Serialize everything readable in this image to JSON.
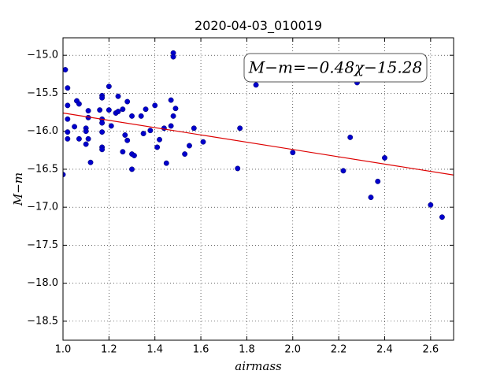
{
  "chart_data": {
    "type": "scatter",
    "title": "2020-04-03_010019",
    "x_label": "airmass",
    "y_label": "M−m",
    "annotation": "M−m=−0.48χ−15.28",
    "fit": {
      "slope": -0.48,
      "intercept": -15.28,
      "color": "#dd0000"
    },
    "color": "#0000cc",
    "grid": true,
    "xlim": [
      1.0,
      2.7
    ],
    "ylim": [
      -18.75,
      -14.77
    ],
    "xticks": [
      {
        "value": 1,
        "label": "1.0"
      },
      1.2,
      1.4,
      1.6,
      1.8,
      {
        "value": 2,
        "label": "2.0"
      },
      2.2,
      2.4,
      2.6
    ],
    "yticks": [
      {
        "value": -15,
        "label": "−15.0"
      },
      {
        "value": -15.5,
        "label": "−15.5"
      },
      {
        "value": -16,
        "label": "−16.0"
      },
      {
        "value": -16.5,
        "label": "−16.5"
      },
      {
        "value": -17,
        "label": "−17.0"
      },
      {
        "value": -17.5,
        "label": "−17.5"
      },
      {
        "value": -18,
        "label": "−18.0"
      },
      {
        "value": -18.5,
        "label": "−18.5"
      }
    ],
    "x": [
      1.0,
      1.01,
      1.02,
      1.02,
      1.02,
      1.02,
      1.02,
      1.05,
      1.06,
      1.07,
      1.07,
      1.1,
      1.1,
      1.1,
      1.11,
      1.11,
      1.11,
      1.12,
      1.16,
      1.17,
      1.17,
      1.17,
      1.17,
      1.17,
      1.17,
      1.17,
      1.2,
      1.2,
      1.21,
      1.23,
      1.24,
      1.24,
      1.26,
      1.26,
      1.27,
      1.28,
      1.28,
      1.3,
      1.3,
      1.3,
      1.31,
      1.34,
      1.35,
      1.36,
      1.38,
      1.4,
      1.41,
      1.42,
      1.44,
      1.45,
      1.47,
      1.47,
      1.48,
      1.48,
      1.48,
      1.49,
      1.53,
      1.55,
      1.57,
      1.61,
      1.76,
      1.77,
      1.84,
      2.0,
      2.22,
      2.25,
      2.28,
      2.34,
      2.37,
      2.4,
      2.6,
      2.65
    ],
    "values": [
      -16.57,
      -15.19,
      -15.43,
      -15.66,
      -15.84,
      -16.01,
      -16.1,
      -15.94,
      -15.6,
      -15.64,
      -16.1,
      -15.96,
      -16.0,
      -16.17,
      -16.1,
      -15.73,
      -15.82,
      -16.41,
      -15.72,
      -15.53,
      -15.56,
      -15.84,
      -15.89,
      -16.01,
      -16.21,
      -16.24,
      -15.41,
      -15.72,
      -15.93,
      -15.76,
      -15.54,
      -15.74,
      -16.27,
      -15.71,
      -16.05,
      -15.61,
      -16.12,
      -15.8,
      -16.5,
      -16.3,
      -16.32,
      -15.8,
      -16.03,
      -15.71,
      -15.99,
      -15.66,
      -16.21,
      -16.11,
      -15.96,
      -16.42,
      -15.59,
      -15.93,
      -15.8,
      -14.97,
      -15.02,
      -15.7,
      -16.3,
      -16.19,
      -15.96,
      -16.14,
      -16.49,
      -15.96,
      -15.39,
      -16.28,
      -16.52,
      -16.08,
      -15.36,
      -16.87,
      -16.66,
      -16.35,
      -16.97,
      -17.13
    ]
  }
}
